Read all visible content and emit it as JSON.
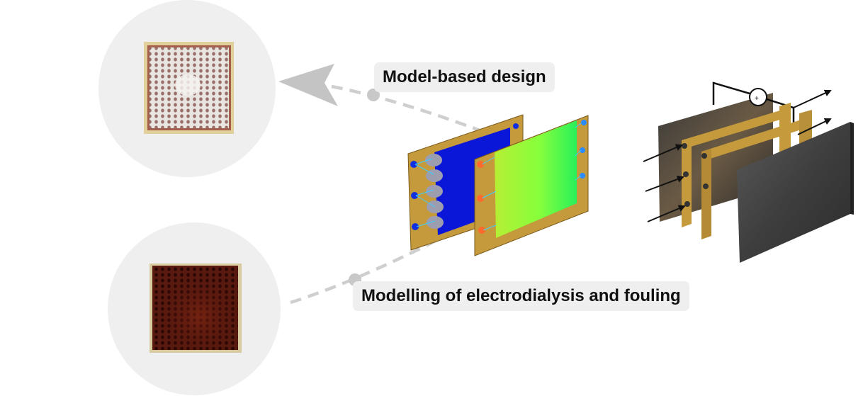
{
  "labels": {
    "model_based_design": "Model-based design",
    "modelling_fouling": "Modelling of electrodialysis and fouling"
  },
  "photos": [
    {
      "name": "clean-membrane-photo",
      "appearance": "white perforated mesh with reddish-brown edges"
    },
    {
      "name": "fouled-membrane-photo",
      "appearance": "dark reddish-brown fouled mesh"
    }
  ],
  "colors": {
    "circle_bg": "#efefef",
    "label_bg": "#efefef",
    "arrow": "#c4c4c4",
    "dashed_line": "#cfcfcf",
    "gold_frame": "#c49a3c",
    "blue_plate": "#0a16d8",
    "green_plate": "#7dff3a",
    "dark_plate": "#454545"
  }
}
